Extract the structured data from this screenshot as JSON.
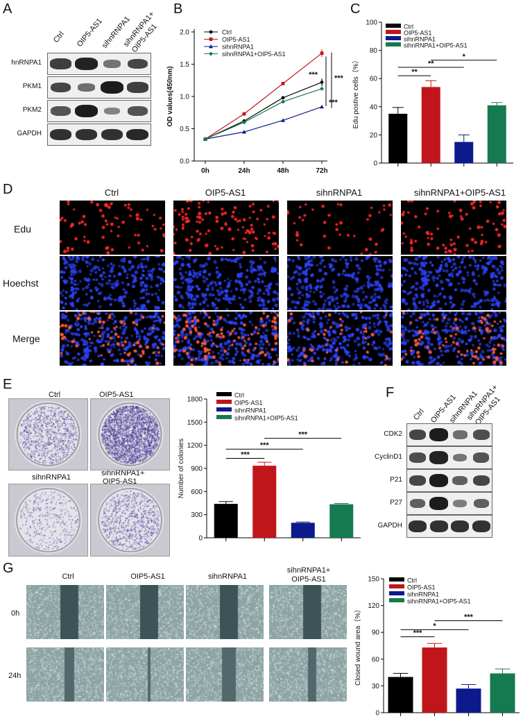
{
  "panels": {
    "A": "A",
    "B": "B",
    "C": "C",
    "D": "D",
    "E": "E",
    "F": "F",
    "G": "G"
  },
  "groups": [
    "Ctrl",
    "OIP5-AS1",
    "sihnRNPA1",
    "sihnRNPA1+OIP5-AS1"
  ],
  "colors": {
    "ctrl": "#000000",
    "oip5": "#c0161b",
    "si": "#0d1a8c",
    "combo": "#157a4f",
    "edu": "#ff2a2a",
    "hoechst": "#2d44ff"
  },
  "panelA": {
    "lanes": [
      "Ctrl",
      "OIP5-AS1",
      "sihnRNPA1",
      "sihnRNPA1+\nOIP5-AS1"
    ],
    "lane_line1": "sihnRNPA1+",
    "lane_line2": "OIP5-AS1",
    "rows": [
      {
        "label": "hnRNPA1",
        "intensity": [
          0.75,
          0.95,
          0.35,
          0.7
        ]
      },
      {
        "label": "PKM1",
        "intensity": [
          0.7,
          0.4,
          1.0,
          0.75
        ]
      },
      {
        "label": "PKM2",
        "intensity": [
          0.6,
          1.0,
          0.25,
          0.6
        ]
      },
      {
        "label": "GAPDH",
        "intensity": [
          0.85,
          0.85,
          0.85,
          0.9
        ]
      }
    ]
  },
  "panelF": {
    "lane_line1": "sihnRNPA1+",
    "lane_line2": "OIP5-AS1",
    "rows": [
      {
        "label": "CDK2",
        "intensity": [
          0.7,
          1.0,
          0.4,
          0.65
        ]
      },
      {
        "label": "CyclinD1",
        "intensity": [
          0.65,
          0.95,
          0.35,
          0.6
        ]
      },
      {
        "label": "P21",
        "intensity": [
          0.7,
          1.0,
          0.5,
          0.7
        ]
      },
      {
        "label": "P27",
        "intensity": [
          0.5,
          1.0,
          0.3,
          0.5
        ]
      },
      {
        "label": "GAPDH",
        "intensity": [
          0.85,
          0.85,
          0.85,
          0.85
        ]
      }
    ]
  },
  "panelD": {
    "rows": [
      "Edu",
      "Hoechst",
      "Merge"
    ],
    "columns": [
      "Ctrl",
      "OIP5-AS1",
      "sihnRNPA1",
      "sihnRNPA1+OIP5-AS1"
    ]
  },
  "panelE": {
    "dish_labels": [
      "Ctrl",
      "OIP5-AS1",
      "sihnRNPA1",
      "sihnRNPA1+",
      "OIP5-AS1"
    ]
  },
  "panelG": {
    "columns": [
      "Ctrl",
      "OIP5-AS1",
      "sihnRNPA1"
    ],
    "last_col_line1": "sihnRNPA1+",
    "last_col_line2": "OIP5-AS1",
    "rows": [
      "0h",
      "24h"
    ]
  },
  "chart_data": [
    {
      "id": "B",
      "type": "line",
      "x": [
        "0h",
        "24h",
        "48h",
        "72h"
      ],
      "ylabel": "OD values(450nm)",
      "ylim": [
        0,
        2.0
      ],
      "yticks": [
        "0.0",
        "0.5",
        "1.0",
        "1.5",
        "2.0"
      ],
      "legend": "top-left",
      "series": [
        {
          "name": "Ctrl",
          "values": [
            0.34,
            0.62,
            0.98,
            1.22
          ]
        },
        {
          "name": "OIP5-AS1",
          "values": [
            0.34,
            0.73,
            1.2,
            1.67
          ]
        },
        {
          "name": "sihnRNPA1",
          "values": [
            0.34,
            0.45,
            0.63,
            0.84
          ]
        },
        {
          "name": "sihnRNPA1+OIP5-AS1",
          "values": [
            0.34,
            0.6,
            0.92,
            1.12
          ]
        }
      ],
      "significance": [
        "***",
        "***",
        "***"
      ]
    },
    {
      "id": "C",
      "type": "bar",
      "categories": [
        "Ctrl",
        "OIP5-AS1",
        "sihnRNPA1",
        "sihnRNPA1+OIP5-AS1"
      ],
      "values": [
        35,
        54,
        15,
        41
      ],
      "errors": [
        4.5,
        4.5,
        5,
        2
      ],
      "ylabel": "Edu postive cells（%）",
      "ylim": [
        0,
        100
      ],
      "yticks": [
        "0",
        "20",
        "40",
        "60",
        "80",
        "100"
      ],
      "legend": "top-left",
      "series_names": [
        "Ctrl",
        "OIP5-AS1",
        "sihnRNPA1",
        "sihnRNPA1+OIP5-AS1"
      ],
      "significance": [
        "**",
        "**",
        "*"
      ]
    },
    {
      "id": "E",
      "type": "bar",
      "categories": [
        "Ctrl",
        "OIP5-AS1",
        "sihnRNPA1",
        "sihnRNPA1+OIP5-AS1"
      ],
      "values": [
        440,
        935,
        195,
        435
      ],
      "errors": [
        30,
        45,
        10,
        10
      ],
      "ylabel": "Number of colonies",
      "ylim": [
        0,
        1800
      ],
      "yticks": [
        "0",
        "300",
        "600",
        "900",
        "1200",
        "1500",
        "1800"
      ],
      "legend": "top-left",
      "series_names": [
        "Ctrl",
        "OIP5-AS1",
        "sihnRNPA1",
        "sihnRNPA1+OIP5-AS1"
      ],
      "significance": [
        "***",
        "***",
        "***"
      ]
    },
    {
      "id": "G",
      "type": "bar",
      "categories": [
        "Ctrl",
        "OIP5-AS1",
        "sihnRNPA1",
        "sihnRNPA1+OIP5-AS1"
      ],
      "values": [
        40,
        73,
        27,
        44
      ],
      "errors": [
        4,
        4.5,
        4.5,
        5
      ],
      "ylabel": "Closed wound area（%）",
      "ylim": [
        0,
        150
      ],
      "yticks": [
        "0",
        "30",
        "60",
        "90",
        "120",
        "150"
      ],
      "legend": "top-left",
      "series_names": [
        "Ctrl",
        "OIP5-AS1",
        "sihnRNPA1",
        "sihnRNPA1+OIP5-AS1"
      ],
      "significance": [
        "***",
        "*",
        "***"
      ]
    }
  ]
}
